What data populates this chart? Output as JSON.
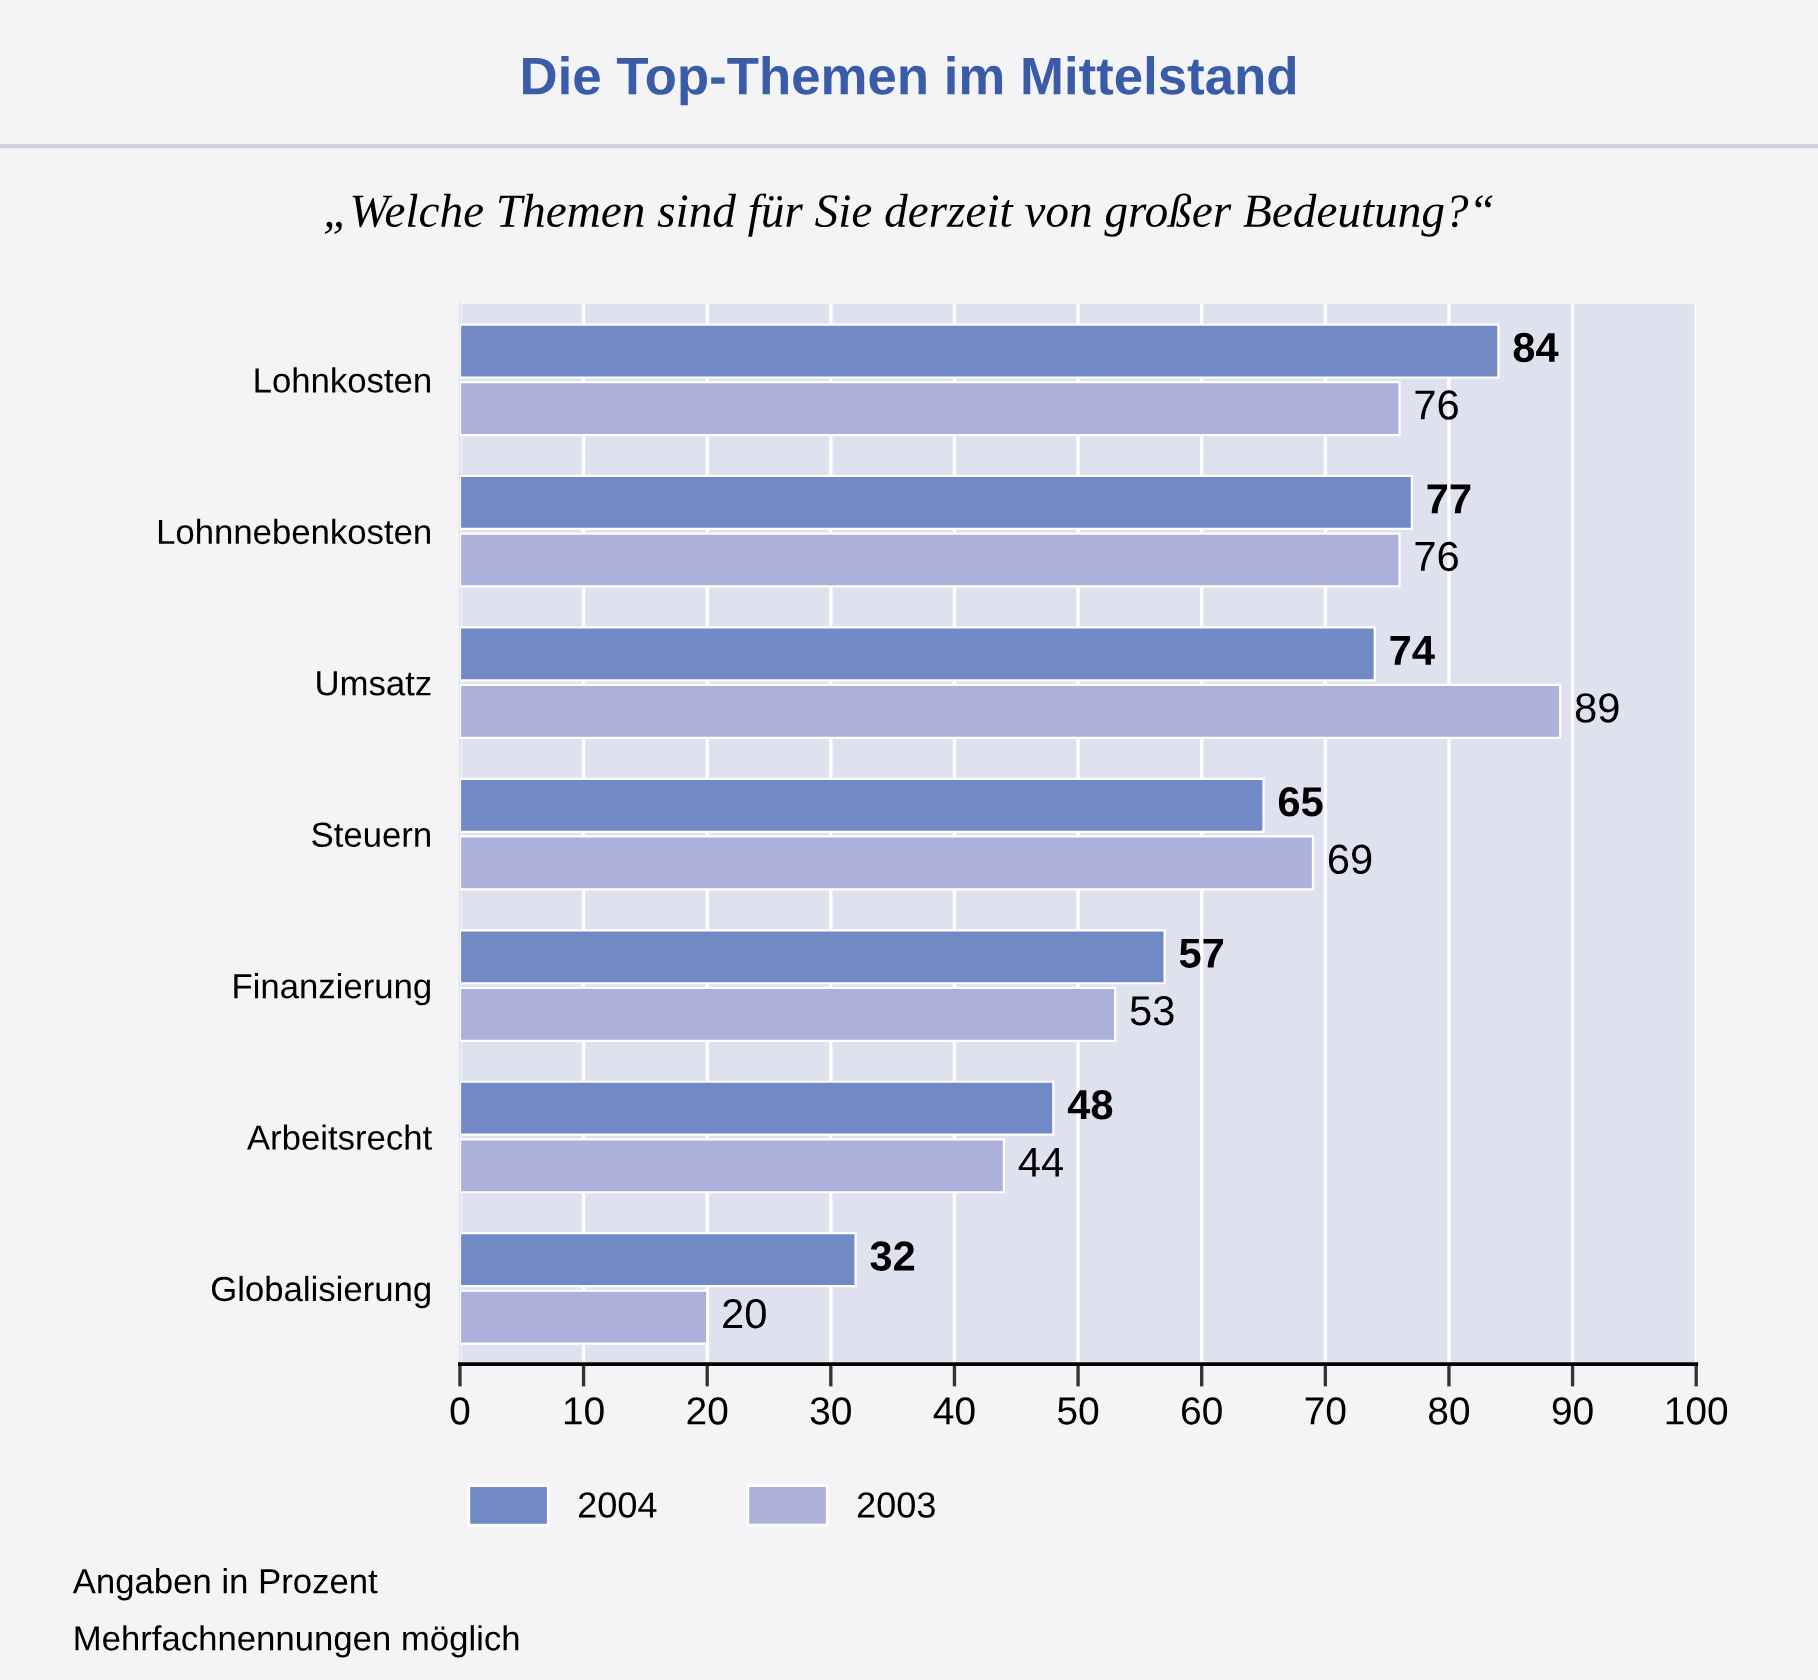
{
  "chart_data": {
    "type": "bar",
    "orientation": "horizontal",
    "title": "Die Top-Themen im Mittelstand",
    "subtitle": "„Welche Themen sind für Sie derzeit von großer Bedeutung?“",
    "categories": [
      "Lohnkosten",
      "Lohnnebenkosten",
      "Umsatz",
      "Steuern",
      "Finanzierung",
      "Arbeitsrecht",
      "Globalisierung"
    ],
    "series": [
      {
        "name": "2004",
        "color": "#7189c4",
        "values": [
          84,
          77,
          74,
          65,
          57,
          48,
          32
        ]
      },
      {
        "name": "2003",
        "color": "#abb1da",
        "values": [
          76,
          76,
          89,
          69,
          53,
          44,
          20
        ]
      }
    ],
    "xlim": [
      0,
      100
    ],
    "xticks": [
      0,
      10,
      20,
      30,
      40,
      50,
      60,
      70,
      80,
      90,
      100
    ],
    "grid": "x",
    "data_labels": true,
    "legend": "bottom left",
    "annotations": [
      "Angaben in Prozent",
      "Mehrfachnennungen möglich"
    ]
  }
}
